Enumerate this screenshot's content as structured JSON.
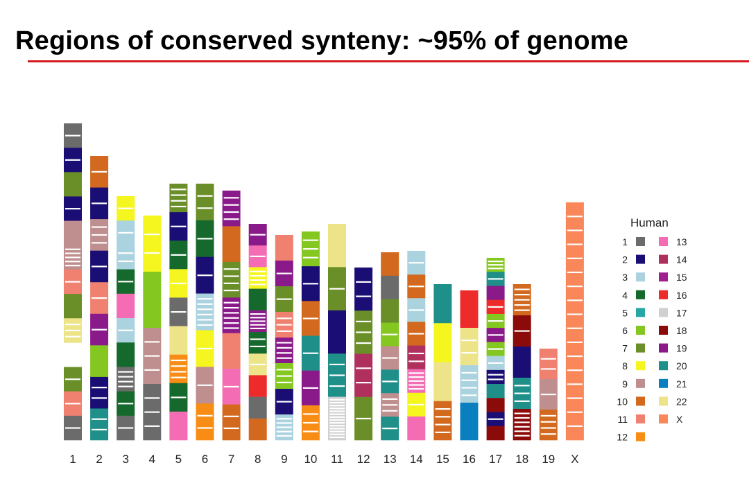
{
  "title": "Regions of conserved synteny: ~95% of genome",
  "colors": {
    "title_rule": "#d7171f",
    "band": "#ffffff"
  },
  "chromosomes": [
    {
      "label": "1",
      "segments": [
        {
          "h": 1,
          "b": 1
        },
        {
          "h": 2,
          "b": 1
        },
        {
          "h": 7
        },
        {
          "h": 2,
          "b": 1
        },
        {
          "h": 9
        },
        {
          "h": 9,
          "b": 5
        },
        {
          "h": 11,
          "b": 1
        },
        {
          "h": 7
        },
        {
          "h": 22,
          "b": 3
        },
        {
          "h": 0,
          "b": 1
        },
        {
          "h": 7,
          "b": 1
        },
        {
          "h": 11,
          "b": 1
        },
        {
          "h": 1,
          "b": 1
        }
      ]
    },
    {
      "label": "2",
      "segments": [
        {
          "h": 10,
          "b": 1
        },
        {
          "h": 2,
          "b": 1
        },
        {
          "h": 9,
          "b": 3
        },
        {
          "h": 2,
          "b": 1
        },
        {
          "h": 11,
          "b": 1
        },
        {
          "h": 19,
          "b": 1
        },
        {
          "h": 6
        },
        {
          "h": 2,
          "b": 2
        },
        {
          "h": 20,
          "b": 2
        }
      ]
    },
    {
      "label": "3",
      "segments": [
        {
          "h": 8,
          "b": 1
        },
        {
          "h": 3,
          "b": 1
        },
        {
          "h": 3,
          "b": 2
        },
        {
          "h": 4,
          "b": 1
        },
        {
          "h": 13
        },
        {
          "h": 3,
          "b": 1
        },
        {
          "h": 4
        },
        {
          "h": 1,
          "b": 4
        },
        {
          "h": 4,
          "b": 1
        },
        {
          "h": 1,
          "b": 1
        }
      ]
    },
    {
      "label": "4",
      "segments": [
        {
          "h": 8,
          "b": 2
        },
        {
          "h": 6
        },
        {
          "h": 9,
          "b": 3
        },
        {
          "h": 1,
          "b": 3
        }
      ]
    },
    {
      "label": "5",
      "segments": [
        {
          "h": 7,
          "b": 4
        },
        {
          "h": 2,
          "b": 1
        },
        {
          "h": 4,
          "b": 1
        },
        {
          "h": 8,
          "b": 1
        },
        {
          "h": 1,
          "b": 1
        },
        {
          "h": 22
        },
        {
          "h": 12,
          "b": 4
        },
        {
          "h": 4,
          "b": 1
        },
        {
          "h": 13
        }
      ]
    },
    {
      "label": "6",
      "segments": [
        {
          "h": 7,
          "b": 2
        },
        {
          "h": 4,
          "b": 1
        },
        {
          "h": 2,
          "b": 1
        },
        {
          "h": 3,
          "b": 6
        },
        {
          "h": 8,
          "b": 1
        },
        {
          "h": 9,
          "b": 1
        },
        {
          "h": 12,
          "b": 2
        }
      ]
    },
    {
      "label": "7",
      "segments": [
        {
          "h": 19,
          "b": 4
        },
        {
          "h": 10
        },
        {
          "h": 7,
          "b": 4
        },
        {
          "h": 19,
          "b": 6
        },
        {
          "h": 11
        },
        {
          "h": 13,
          "b": 1
        },
        {
          "h": 10,
          "b": 2
        }
      ]
    },
    {
      "label": "8",
      "segments": [
        {
          "h": 19,
          "b": 1
        },
        {
          "h": 13,
          "b": 1
        },
        {
          "h": 8,
          "b": 4
        },
        {
          "h": 4
        },
        {
          "h": 19,
          "b": 5
        },
        {
          "h": 4,
          "b": 2
        },
        {
          "h": 22,
          "b": 1
        },
        {
          "h": 16
        },
        {
          "h": 1
        },
        {
          "h": 10
        }
      ]
    },
    {
      "label": "9",
      "segments": [
        {
          "h": 11
        },
        {
          "h": 19,
          "b": 1
        },
        {
          "h": 7,
          "b": 1
        },
        {
          "h": 11,
          "b": 3
        },
        {
          "h": 19,
          "b": 4
        },
        {
          "h": 6,
          "b": 3
        },
        {
          "h": 2,
          "b": 1
        },
        {
          "h": 3,
          "b": 5
        }
      ]
    },
    {
      "label": "10",
      "segments": [
        {
          "h": 6,
          "b": 3
        },
        {
          "h": 2,
          "b": 1
        },
        {
          "h": 10,
          "b": 1
        },
        {
          "h": 20,
          "b": 1
        },
        {
          "h": 19,
          "b": 1
        },
        {
          "h": 12,
          "b": 3
        }
      ]
    },
    {
      "label": "11",
      "segments": [
        {
          "h": 22
        },
        {
          "h": 7,
          "b": 1
        },
        {
          "h": 2
        },
        {
          "h": 20,
          "b": 3
        },
        {
          "h": 17,
          "b": 14
        }
      ]
    },
    {
      "label": "12",
      "segments": [
        {
          "h": 2,
          "b": 2
        },
        {
          "h": 7,
          "b": 3
        },
        {
          "h": 14,
          "b": 2
        },
        {
          "h": 7,
          "b": 1
        }
      ]
    },
    {
      "label": "13",
      "segments": [
        {
          "h": 10
        },
        {
          "h": 1
        },
        {
          "h": 7
        },
        {
          "h": 6,
          "b": 1
        },
        {
          "h": 9,
          "b": 1
        },
        {
          "h": 20,
          "b": 1
        },
        {
          "h": 9,
          "b": 3
        },
        {
          "h": 20,
          "b": 1
        }
      ]
    },
    {
      "label": "14",
      "segments": [
        {
          "h": 3,
          "b": 1
        },
        {
          "h": 10,
          "b": 1
        },
        {
          "h": 3,
          "b": 1
        },
        {
          "h": 10,
          "b": 1
        },
        {
          "h": 14,
          "b": 2
        },
        {
          "h": 13,
          "b": 5
        },
        {
          "h": 8,
          "b": 1
        },
        {
          "h": 13
        }
      ]
    },
    {
      "label": "15",
      "segments": [
        {
          "h": 20
        },
        {
          "h": 8
        },
        {
          "h": 22
        },
        {
          "h": 10,
          "b": 4
        }
      ]
    },
    {
      "label": "16",
      "segments": [
        {
          "h": 16
        },
        {
          "h": 22,
          "b": 2
        },
        {
          "h": 3,
          "b": 4
        },
        {
          "h": 21
        }
      ]
    },
    {
      "label": "17",
      "segments": [
        {
          "h": 6,
          "b": 3
        },
        {
          "h": 20,
          "b": 1
        },
        {
          "h": 19
        },
        {
          "h": 16,
          "b": 1
        },
        {
          "h": 6,
          "b": 1
        },
        {
          "h": 19,
          "b": 1
        },
        {
          "h": 6,
          "b": 1
        },
        {
          "h": 3,
          "b": 1
        },
        {
          "h": 2,
          "b": 2
        },
        {
          "h": 20
        },
        {
          "h": 18
        },
        {
          "h": 2,
          "b": 1
        },
        {
          "h": 18
        }
      ]
    },
    {
      "label": "18",
      "segments": [
        {
          "h": 10,
          "b": 5
        },
        {
          "h": 18,
          "b": 1
        },
        {
          "h": 2
        },
        {
          "h": 20,
          "b": 3
        },
        {
          "h": 18,
          "b": 6
        }
      ]
    },
    {
      "label": "19",
      "segments": [
        {
          "h": 11,
          "b": 2
        },
        {
          "h": 9,
          "b": 1
        },
        {
          "h": 10,
          "b": 4
        }
      ]
    },
    {
      "label": "X",
      "segments": [
        {
          "h": 23,
          "b": 16
        }
      ]
    }
  ],
  "legend": {
    "title": "Human",
    "items": [
      {
        "label": "1",
        "color": "#6b6b6b"
      },
      {
        "label": "2",
        "color": "#1a0e75"
      },
      {
        "label": "3",
        "color": "#abd3df"
      },
      {
        "label": "4",
        "color": "#15692c"
      },
      {
        "label": "5",
        "color": "#27a6a6"
      },
      {
        "label": "6",
        "color": "#84c720"
      },
      {
        "label": "7",
        "color": "#6a8e28"
      },
      {
        "label": "8",
        "color": "#f5f51f"
      },
      {
        "label": "9",
        "color": "#bf8e8e"
      },
      {
        "label": "10",
        "color": "#d2691e"
      },
      {
        "label": "11",
        "color": "#f08070"
      },
      {
        "label": "12",
        "color": "#f88d16"
      },
      {
        "label": "13",
        "color": "#f46db4"
      },
      {
        "label": "14",
        "color": "#b0305d"
      },
      {
        "label": "15",
        "color": "#a0208e"
      },
      {
        "label": "16",
        "color": "#ee2b2b"
      },
      {
        "label": "17",
        "color": "#d0d0d0"
      },
      {
        "label": "18",
        "color": "#8b0a0a"
      },
      {
        "label": "19",
        "color": "#8a1a8a"
      },
      {
        "label": "20",
        "color": "#1f8f8a"
      },
      {
        "label": "21",
        "color": "#0a7fbf"
      },
      {
        "label": "22",
        "color": "#ede48a"
      },
      {
        "label": "X",
        "color": "#f9875a"
      }
    ]
  }
}
